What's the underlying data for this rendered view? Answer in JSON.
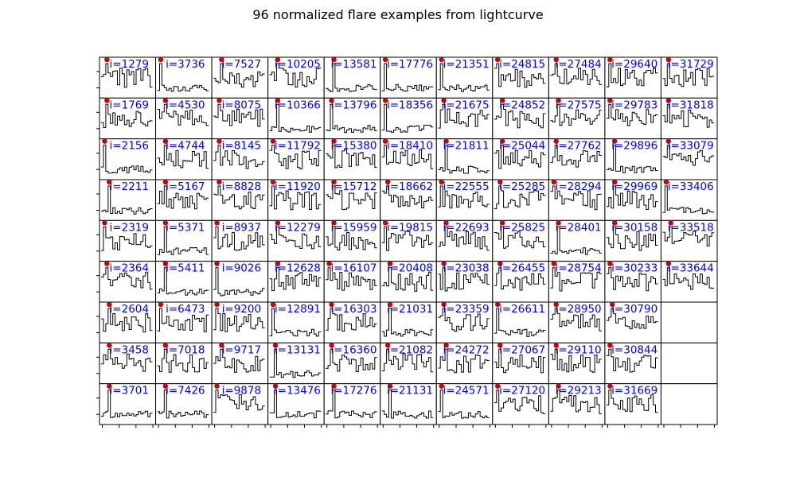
{
  "chart_data": {
    "type": "line",
    "title": "96 normalized flare examples from lightcurve",
    "layout": "small-multiples grid, 9 rows x 11 columns, filled column-major (top-to-bottom, then left-to-right)",
    "grid": false,
    "panel_label_prefix": "i=",
    "panel_label_color": "#0000ff",
    "line_color": "#000000",
    "marker_color": "#cc0000",
    "marker": "flare peak marked with a red dot at the top of each panel",
    "axis_ticks": "unlabeled",
    "panels": [
      1279,
      1769,
      2156,
      2211,
      2319,
      2364,
      2604,
      3458,
      3701,
      3736,
      4530,
      4744,
      5167,
      5371,
      5411,
      6473,
      7018,
      7426,
      7527,
      8075,
      8145,
      8828,
      8937,
      9026,
      9200,
      9717,
      9878,
      10205,
      10366,
      11792,
      11920,
      12279,
      12628,
      12891,
      13131,
      13476,
      13581,
      13796,
      15380,
      15712,
      15959,
      16107,
      16303,
      16360,
      17276,
      17776,
      18356,
      18410,
      18662,
      19815,
      20408,
      21031,
      21082,
      21131,
      21351,
      21675,
      21811,
      22555,
      22693,
      23038,
      23359,
      24272,
      24571,
      24815,
      24852,
      25044,
      25285,
      25825,
      26455,
      26611,
      27067,
      27120,
      27484,
      27575,
      27762,
      28294,
      28401,
      28754,
      28950,
      29110,
      29213,
      29640,
      29783,
      29896,
      29969,
      30158,
      30233,
      30790,
      30844,
      31669,
      31729,
      31818,
      33079,
      33406,
      33518,
      33644
    ]
  }
}
